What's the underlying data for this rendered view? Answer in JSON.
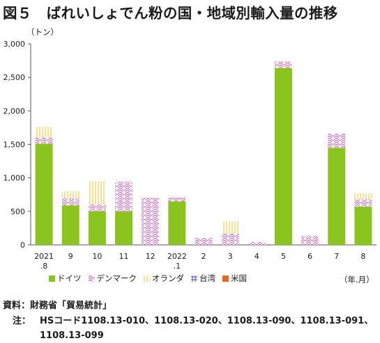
{
  "title": "図５　ばれいしょでん粉の国・地域別輸入量の推移",
  "unit_label": "（トン）",
  "period_label": "（年.月）",
  "source": "資料：財務省「貿易統計」",
  "note_label": "注：",
  "note_text": "HSコード1108.13-010、1108.13-020、1108.13-090、1108.13-091、1108.13-099",
  "colors": {
    "germany": "#8bc41e",
    "denmark": "#c04bb4",
    "netherlands": "#e8c62a",
    "taiwan": "#3a56b0",
    "usa": "#e8661f"
  },
  "chart_data": {
    "type": "bar",
    "stacked": true,
    "categories": [
      [
        "2021",
        ".8"
      ],
      [
        "9"
      ],
      [
        "10"
      ],
      [
        "11"
      ],
      [
        "12"
      ],
      [
        "2022",
        ".1"
      ],
      [
        "2"
      ],
      [
        "3"
      ],
      [
        "4"
      ],
      [
        "5"
      ],
      [
        "6"
      ],
      [
        "7"
      ],
      [
        "8"
      ]
    ],
    "series": [
      {
        "name": "ドイツ",
        "pattern": "solid",
        "values": [
          1510,
          590,
          500,
          500,
          0,
          650,
          0,
          0,
          0,
          2640,
          0,
          1450,
          570
        ]
      },
      {
        "name": "デンマーク",
        "pattern": "wave",
        "values": [
          90,
          100,
          100,
          440,
          700,
          60,
          100,
          170,
          40,
          100,
          130,
          210,
          110
        ]
      },
      {
        "name": "オランダ",
        "pattern": "vlines",
        "values": [
          160,
          110,
          350,
          0,
          0,
          0,
          0,
          180,
          0,
          0,
          0,
          0,
          90
        ]
      },
      {
        "name": "台湾",
        "pattern": "grid",
        "values": [
          0,
          0,
          0,
          0,
          0,
          0,
          0,
          0,
          0,
          0,
          0,
          0,
          0
        ]
      },
      {
        "name": "米国",
        "pattern": "solid",
        "values": [
          0,
          0,
          0,
          0,
          0,
          0,
          0,
          0,
          0,
          0,
          0,
          0,
          0
        ]
      }
    ],
    "ylim": [
      0,
      3000
    ],
    "yticks": [
      "0",
      "500",
      "1,000",
      "1,500",
      "2,000",
      "2,500",
      "3,000"
    ],
    "grid": false,
    "legend": "bottom"
  }
}
